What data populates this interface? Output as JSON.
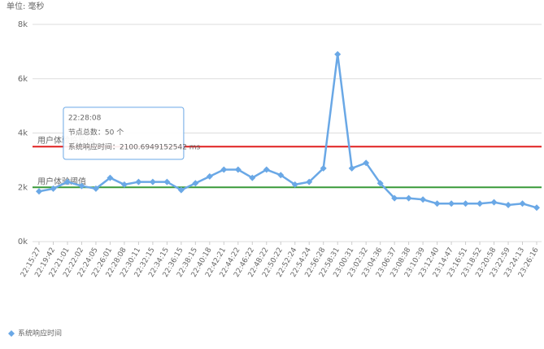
{
  "chart_data": {
    "type": "line",
    "unit_label": "单位: 毫秒",
    "categories": [
      "22:15:27",
      "22:19:42",
      "22:21:01",
      "22:22:02",
      "22:24:05",
      "22:26:01",
      "22:28:08",
      "22:30:11",
      "22:32:15",
      "22:34:15",
      "22:36:15",
      "22:38:15",
      "22:40:18",
      "22:42:21",
      "22:44:22",
      "22:46:22",
      "22:48:22",
      "22:50:22",
      "22:52:24",
      "22:54:24",
      "22:56:28",
      "22:58:31",
      "23:00:31",
      "23:02:32",
      "23:04:36",
      "23:06:37",
      "23:08:38",
      "23:10:39",
      "23:12:40",
      "23:14:47",
      "23:16:51",
      "23:18:52",
      "23:20:58",
      "23:22:59",
      "23:24:13",
      "23:26:16"
    ],
    "series": [
      {
        "name": "系统响应时间",
        "color": "#6aa8e6",
        "values": [
          1850,
          1950,
          2200,
          2050,
          1950,
          2350,
          2100.6949152542,
          2200,
          2200,
          2200,
          1900,
          2150,
          2400,
          2650,
          2650,
          2350,
          2650,
          2450,
          2100,
          2200,
          2700,
          6900,
          2700,
          2900,
          2150,
          1600,
          1600,
          1550,
          1400,
          1400,
          1400,
          1400,
          1450,
          1350,
          1400,
          1250
        ]
      }
    ],
    "ylim": [
      0,
      8000
    ],
    "yticks": [
      {
        "value": 0,
        "label": "0k"
      },
      {
        "value": 2000,
        "label": "2k"
      },
      {
        "value": 4000,
        "label": "4k"
      },
      {
        "value": 6000,
        "label": "6k"
      },
      {
        "value": 8000,
        "label": "8k"
      }
    ],
    "grid": true,
    "reference_lines": [
      {
        "value": 3500,
        "label": "用户体验临界值",
        "color": "#e02020"
      },
      {
        "value": 2000,
        "label": "用户体验阈值",
        "color": "#3a9a3a"
      }
    ],
    "tooltip": {
      "index": 6,
      "lines": [
        "22:28:08",
        "节点总数：50 个",
        "系统响应时间：2100.6949152542 ms"
      ]
    },
    "legend": "bottom-left"
  }
}
